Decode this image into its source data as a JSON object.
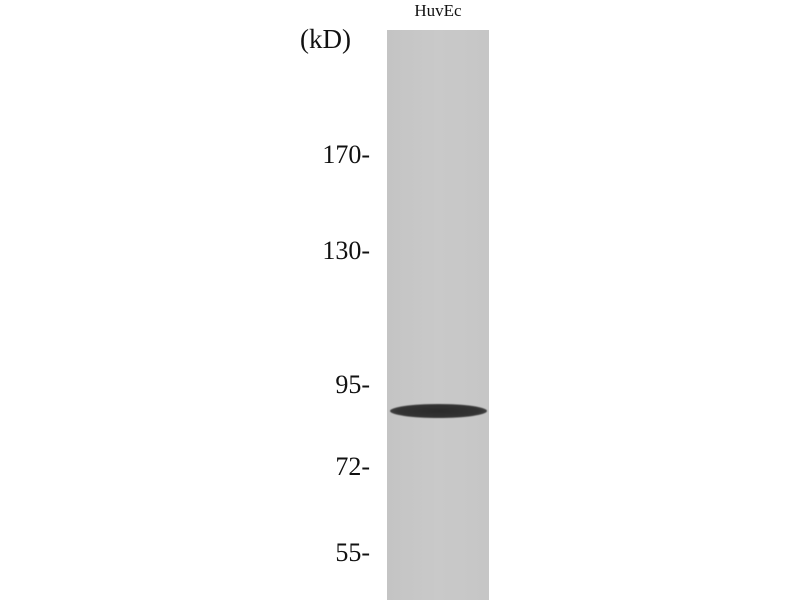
{
  "lanes": [
    {
      "label": "HuvEc"
    }
  ],
  "unit_label": "(kD)",
  "markers": [
    {
      "label": "170-",
      "kd": 170
    },
    {
      "label": "130-",
      "kd": 130
    },
    {
      "label": "95-",
      "kd": 95
    },
    {
      "label": "72-",
      "kd": 72
    },
    {
      "label": "55-",
      "kd": 55
    }
  ],
  "bands": [
    {
      "lane": 0,
      "approx_kd": 88
    }
  ],
  "colors": {
    "lane": "#c6c6c6",
    "band": "#2e2e2e"
  }
}
